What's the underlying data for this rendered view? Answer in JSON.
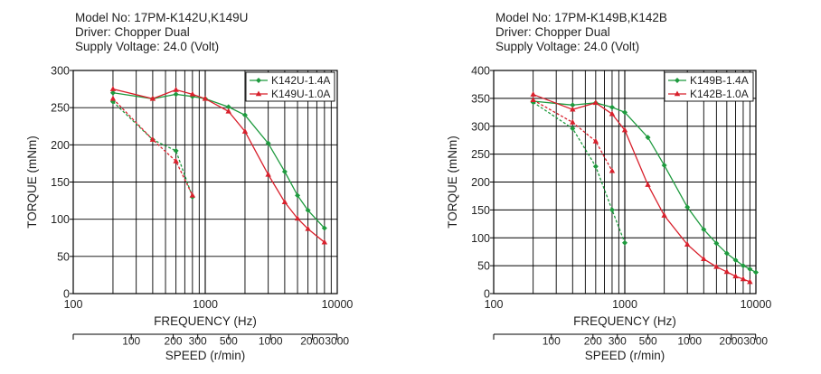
{
  "colors": {
    "green": "#1e9a3e",
    "red": "#d8202c",
    "grid": "#000000"
  },
  "chart_data": [
    {
      "type": "line",
      "header": [
        "Model No: 17PM-K142U,K149U",
        "Driver: Chopper Dual",
        "Supply Voltage: 24.0 (Volt)"
      ],
      "xlabel": "FREQUENCY (Hz)",
      "ylabel": "TORQUE (mNm)",
      "x_scale": "log",
      "xlim": [
        100,
        10000
      ],
      "ylim": [
        0,
        300
      ],
      "x_ticks": [
        "100",
        "1000",
        "10000"
      ],
      "y_ticks": [
        "0",
        "50",
        "100",
        "150",
        "200",
        "250",
        "300"
      ],
      "speed_label": "SPEED (r/min)",
      "speed_ticks": [
        "100",
        "200",
        "300",
        "500",
        "1000",
        "2000",
        "3000"
      ],
      "legend_position": "top-right",
      "series": [
        {
          "name": "K142U-1.4A",
          "color": "green",
          "marker": "diamond",
          "kind": "pullout",
          "x": [
            200,
            400,
            600,
            800,
            1000,
            1500,
            2000,
            3000,
            4000,
            5000,
            6000,
            8000
          ],
          "y": [
            270,
            262,
            268,
            265,
            262,
            251,
            240,
            202,
            164,
            132,
            112,
            88
          ]
        },
        {
          "name": "K149U-1.0A",
          "color": "red",
          "marker": "triangle",
          "kind": "pullout",
          "x": [
            200,
            400,
            600,
            800,
            1000,
            1500,
            2000,
            3000,
            4000,
            5000,
            6000,
            8000
          ],
          "y": [
            275,
            262,
            274,
            268,
            262,
            245,
            218,
            160,
            123,
            101,
            87,
            69
          ]
        },
        {
          "color": "green",
          "marker": "diamond",
          "kind": "pullin",
          "x": [
            200,
            400,
            600,
            800
          ],
          "y": [
            258,
            207,
            192,
            130
          ]
        },
        {
          "color": "red",
          "marker": "triangle",
          "kind": "pullin",
          "x": [
            200,
            400,
            600,
            800
          ],
          "y": [
            262,
            207,
            178,
            132
          ]
        }
      ]
    },
    {
      "type": "line",
      "header": [
        "Model No: 17PM-K149B,K142B",
        "Driver: Chopper Dual",
        "Supply Voltage: 24.0 (Volt)"
      ],
      "xlabel": "FREQUENCY (Hz)",
      "ylabel": "TORQUE (mNm)",
      "x_scale": "log",
      "xlim": [
        100,
        10000
      ],
      "ylim": [
        0,
        400
      ],
      "x_ticks": [
        "100",
        "1000",
        "10000"
      ],
      "y_ticks": [
        "0",
        "50",
        "100",
        "150",
        "200",
        "250",
        "300",
        "350",
        "400"
      ],
      "speed_label": "SPEED (r/min)",
      "speed_ticks": [
        "100",
        "200",
        "300",
        "500",
        "1000",
        "2000",
        "3000"
      ],
      "legend_position": "top-right",
      "series": [
        {
          "name": "K149B-1.4A",
          "color": "green",
          "marker": "diamond",
          "kind": "pullout",
          "x": [
            200,
            400,
            600,
            800,
            1000,
            1500,
            2000,
            3000,
            4000,
            5000,
            6000,
            7000,
            8000,
            9000,
            10000
          ],
          "y": [
            345,
            338,
            342,
            334,
            325,
            280,
            230,
            155,
            115,
            90,
            72,
            60,
            50,
            44,
            38
          ]
        },
        {
          "name": "K142B-1.0A",
          "color": "red",
          "marker": "triangle",
          "kind": "pullout",
          "x": [
            200,
            400,
            600,
            800,
            1000,
            1500,
            2000,
            3000,
            4000,
            5000,
            6000,
            7000,
            8000,
            9000
          ],
          "y": [
            357,
            330,
            342,
            322,
            293,
            195,
            140,
            88,
            62,
            48,
            39,
            31,
            26,
            21
          ]
        },
        {
          "color": "green",
          "marker": "diamond",
          "kind": "pullin",
          "x": [
            200,
            400,
            600,
            800,
            1000
          ],
          "y": [
            343,
            296,
            228,
            150,
            91
          ]
        },
        {
          "color": "red",
          "marker": "triangle",
          "kind": "pullin",
          "x": [
            200,
            400,
            600,
            800
          ],
          "y": [
            347,
            307,
            273,
            220
          ]
        }
      ]
    }
  ]
}
